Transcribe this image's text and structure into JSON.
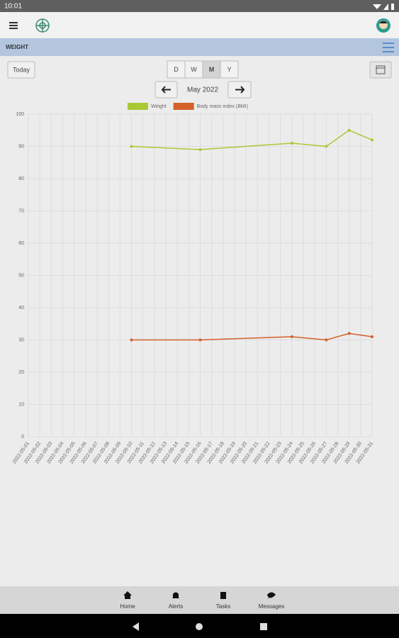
{
  "status_bar": {
    "time": "10:01"
  },
  "section": {
    "title": "WEIGHT"
  },
  "controls": {
    "today": "Today",
    "periods": [
      "D",
      "W",
      "M",
      "Y"
    ],
    "selected_period": "M",
    "month": "May 2022"
  },
  "chart_data": {
    "type": "line",
    "categories": [
      "2022-05-01",
      "2022-05-02",
      "2022-05-03",
      "2022-05-04",
      "2022-05-05",
      "2022-05-06",
      "2022-05-07",
      "2022-05-08",
      "2022-05-09",
      "2022-05-10",
      "2022-05-11",
      "2022-05-12",
      "2022-05-13",
      "2022-05-14",
      "2022-05-15",
      "2022-05-16",
      "2022-05-17",
      "2022-05-18",
      "2022-05-19",
      "2022-05-20",
      "2022-05-21",
      "2022-05-22",
      "2022-05-23",
      "2022-05-24",
      "2022-05-25",
      "2022-05-26",
      "2022-05-27",
      "2022-05-28",
      "2022-05-29",
      "2022-05-30",
      "2022-05-31"
    ],
    "series": [
      {
        "name": "Weight",
        "color": "#a9c934",
        "x": [
          "2022-05-10",
          "2022-05-16",
          "2022-05-24",
          "2022-05-27",
          "2022-05-29",
          "2022-05-31"
        ],
        "values": [
          90,
          89,
          91,
          90,
          95,
          92
        ]
      },
      {
        "name": "Body mass index (BMI)",
        "color": "#d4602a",
        "x": [
          "2022-05-10",
          "2022-05-16",
          "2022-05-24",
          "2022-05-27",
          "2022-05-29",
          "2022-05-31"
        ],
        "values": [
          30,
          30,
          31,
          30,
          32,
          31
        ]
      }
    ],
    "ylim": [
      0,
      100
    ],
    "yticks": [
      0,
      10,
      20,
      30,
      40,
      50,
      60,
      70,
      80,
      90,
      100
    ],
    "grid": true,
    "legend": "top"
  },
  "bottom_nav": {
    "items": [
      "Home",
      "Alerts",
      "Tasks",
      "Messages"
    ]
  }
}
